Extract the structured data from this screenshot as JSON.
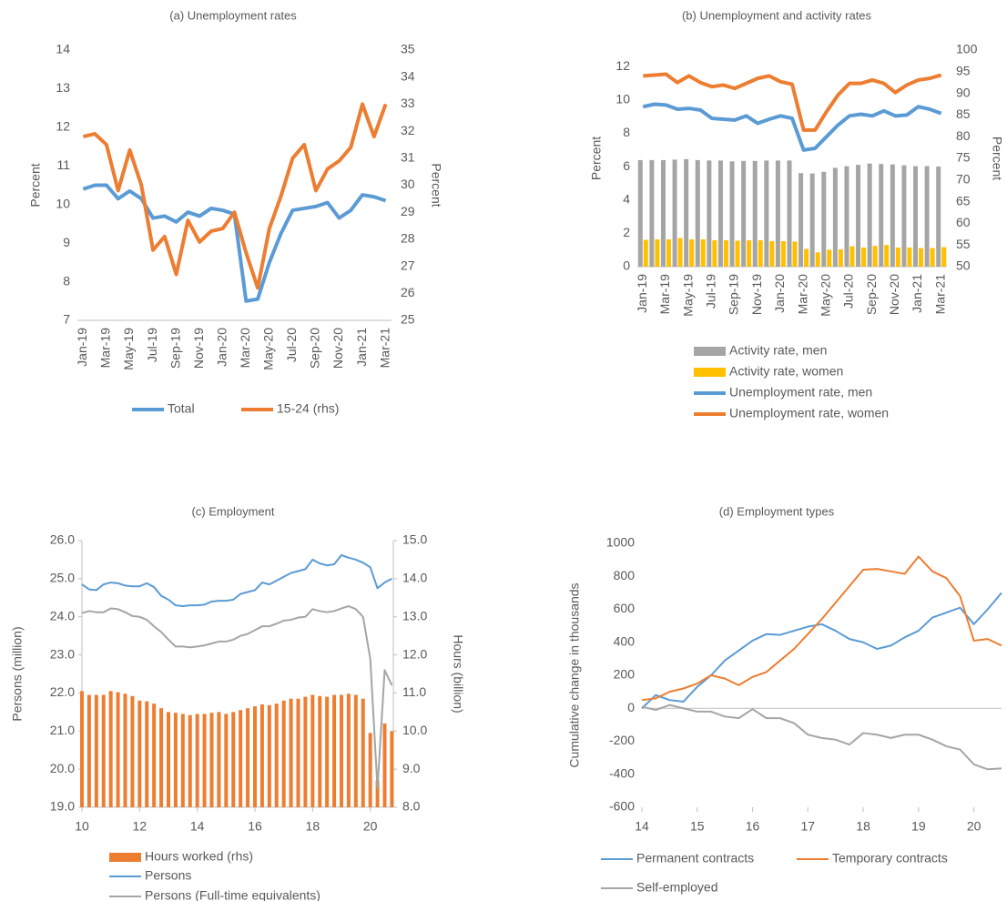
{
  "chart_data": [
    {
      "type": "combo",
      "title": "(a) Unemployment rates",
      "ylabel": "Percent",
      "y2label": "Percent",
      "categories": [
        "Jan-19",
        null,
        "Mar-19",
        null,
        "May-19",
        null,
        "Jul-19",
        null,
        "Sep-19",
        null,
        "Nov-19",
        null,
        "Jan-20",
        null,
        "Mar-20",
        null,
        "May-20",
        null,
        "Jul-20",
        null,
        "Sep-20",
        null,
        "Nov-20",
        null,
        "Jan-21",
        null,
        "Mar-21"
      ],
      "ylim": [
        7,
        14
      ],
      "yticks": [
        7,
        8,
        9,
        10,
        11,
        12,
        13,
        14
      ],
      "y2lim": [
        25,
        35
      ],
      "y2ticks": [
        25,
        26,
        27,
        28,
        29,
        30,
        31,
        32,
        33,
        34,
        35
      ],
      "series": [
        {
          "name": "Total",
          "type": "line",
          "color": "#5b9bd5",
          "values": [
            10.4,
            10.5,
            10.5,
            10.15,
            10.35,
            10.15,
            9.65,
            9.7,
            9.55,
            9.8,
            9.7,
            9.9,
            9.85,
            9.75,
            7.5,
            7.55,
            8.5,
            9.25,
            9.85,
            9.9,
            9.95,
            10.05,
            9.65,
            9.85,
            10.25,
            10.2,
            10.1
          ]
        },
        {
          "name": "15-24 (rhs)",
          "type": "line",
          "axis": "y2",
          "color": "#ed7d31",
          "values": [
            31.8,
            31.9,
            31.5,
            29.8,
            31.3,
            30.0,
            27.6,
            28.1,
            26.7,
            28.7,
            27.9,
            28.3,
            28.4,
            29.0,
            27.5,
            26.2,
            28.4,
            29.6,
            31.0,
            31.5,
            29.8,
            30.6,
            30.9,
            31.4,
            33.0,
            31.8,
            33.0
          ]
        }
      ]
    },
    {
      "type": "combo",
      "title": "(b) Unemployment and activity rates",
      "ylabel": "Percent",
      "y2label": "Percent",
      "categories": [
        "Jan-19",
        null,
        "Mar-19",
        null,
        "May-19",
        null,
        "Jul-19",
        null,
        "Sep-19",
        null,
        "Nov-19",
        null,
        "Jan-20",
        null,
        "Mar-20",
        null,
        "May-20",
        null,
        "Jul-20",
        null,
        "Sep-20",
        null,
        "Nov-20",
        null,
        "Jan-21",
        null,
        "Mar-21"
      ],
      "ylim": [
        0,
        13
      ],
      "yticks": [
        0,
        2,
        4,
        6,
        8,
        10,
        12
      ],
      "y2lim": [
        50,
        100
      ],
      "y2ticks": [
        50,
        55,
        60,
        65,
        70,
        75,
        80,
        85,
        90,
        95,
        100
      ],
      "series": [
        {
          "name": "Activity rate, men",
          "type": "bar",
          "axis": "y2",
          "color": "#a5a5a5",
          "values": [
            74.6,
            74.6,
            74.6,
            74.7,
            74.8,
            74.6,
            74.5,
            74.5,
            74.3,
            74.4,
            74.4,
            74.5,
            74.5,
            74.5,
            71.6,
            71.5,
            71.9,
            72.8,
            73.2,
            73.5,
            73.8,
            73.7,
            73.6,
            73.4,
            73.2,
            73.2,
            73.1
          ]
        },
        {
          "name": "Activity rate, women",
          "type": "bar",
          "axis": "y2",
          "color": "#ffc000",
          "values": [
            56.2,
            56.3,
            56.3,
            56.6,
            56.3,
            56.3,
            56.1,
            56.1,
            56.0,
            56.1,
            56.1,
            55.9,
            55.9,
            55.8,
            54.1,
            53.3,
            53.9,
            54.0,
            54.7,
            54.4,
            54.8,
            55.0,
            54.4,
            54.4,
            54.3,
            54.3,
            54.5
          ]
        },
        {
          "name": "Unemployment rate, men",
          "type": "line",
          "color": "#5b9bd5",
          "values": [
            9.6,
            9.75,
            9.7,
            9.45,
            9.5,
            9.4,
            8.9,
            8.85,
            8.8,
            9.05,
            8.6,
            8.85,
            9.05,
            8.9,
            7.0,
            7.1,
            7.8,
            8.5,
            9.05,
            9.15,
            9.05,
            9.35,
            9.05,
            9.1,
            9.6,
            9.45,
            9.2
          ]
        },
        {
          "name": "Unemployment rate, women",
          "type": "line",
          "color": "#ed7d31",
          "values": [
            11.45,
            11.5,
            11.55,
            11.05,
            11.45,
            11.05,
            10.8,
            10.9,
            10.7,
            11.0,
            11.3,
            11.45,
            11.1,
            10.95,
            8.2,
            8.2,
            9.3,
            10.3,
            11.0,
            11.0,
            11.2,
            11.0,
            10.45,
            10.9,
            11.2,
            11.3,
            11.5
          ]
        }
      ]
    },
    {
      "type": "combo",
      "title": "(c) Employment",
      "ylabel": "Persons (million)",
      "y2label": "Hours (billion)",
      "x": [
        10,
        10.25,
        10.5,
        10.75,
        11,
        11.25,
        11.5,
        11.75,
        12,
        12.25,
        12.5,
        12.75,
        13,
        13.25,
        13.5,
        13.75,
        14,
        14.25,
        14.5,
        14.75,
        15,
        15.25,
        15.5,
        15.75,
        16,
        16.25,
        16.5,
        16.75,
        17,
        17.25,
        17.5,
        17.75,
        18,
        18.25,
        18.5,
        18.75,
        19,
        19.25,
        19.5,
        19.75,
        20,
        20.25,
        20.5,
        20.75
      ],
      "xlim": [
        10,
        20.8
      ],
      "xticks": [
        10,
        12,
        14,
        16,
        18,
        20
      ],
      "ylim": [
        19,
        26
      ],
      "yticks": [
        {
          "value": 19,
          "label": "19.0"
        },
        {
          "value": 20,
          "label": "20.0"
        },
        {
          "value": 21,
          "label": "21.0"
        },
        {
          "value": 22,
          "label": "22.0"
        },
        {
          "value": 23,
          "label": "23.0"
        },
        {
          "value": 24,
          "label": "24.0"
        },
        {
          "value": 25,
          "label": "25.0"
        },
        {
          "value": 26,
          "label": "26.0"
        }
      ],
      "y2lim": [
        8,
        15
      ],
      "y2ticks": [
        {
          "value": 8,
          "label": "8.0"
        },
        {
          "value": 9,
          "label": "9.0"
        },
        {
          "value": 10,
          "label": "10.0"
        },
        {
          "value": 11,
          "label": "11.0"
        },
        {
          "value": 12,
          "label": "12.0"
        },
        {
          "value": 13,
          "label": "13.0"
        },
        {
          "value": 14,
          "label": "14.0"
        },
        {
          "value": 15,
          "label": "15.0"
        }
      ],
      "series": [
        {
          "name": "Hours worked (rhs)",
          "type": "bar",
          "axis": "y2",
          "color": "#ed7d31",
          "values": [
            11.05,
            10.95,
            10.95,
            10.95,
            11.05,
            11.02,
            10.98,
            10.92,
            10.8,
            10.78,
            10.72,
            10.6,
            10.5,
            10.48,
            10.45,
            10.42,
            10.45,
            10.45,
            10.48,
            10.5,
            10.45,
            10.5,
            10.55,
            10.6,
            10.65,
            10.7,
            10.68,
            10.72,
            10.8,
            10.85,
            10.85,
            10.9,
            10.95,
            10.92,
            10.9,
            10.95,
            10.95,
            10.98,
            10.95,
            10.85,
            9.95,
            8.7,
            10.2,
            10.0
          ]
        },
        {
          "name": "Persons",
          "type": "line",
          "color": "#5b9bd5",
          "values": [
            24.85,
            24.72,
            24.7,
            24.85,
            24.9,
            24.88,
            24.82,
            24.8,
            24.8,
            24.88,
            24.78,
            24.55,
            24.45,
            24.3,
            24.28,
            24.3,
            24.3,
            24.32,
            24.4,
            24.42,
            24.42,
            24.45,
            24.6,
            24.65,
            24.7,
            24.9,
            24.85,
            24.95,
            25.05,
            25.15,
            25.2,
            25.25,
            25.5,
            25.4,
            25.35,
            25.38,
            25.62,
            25.55,
            25.5,
            25.42,
            25.3,
            24.75,
            24.9,
            25
          ]
        },
        {
          "name": "Persons (Full-time equivalents)",
          "type": "line",
          "color": "#a5a5a5",
          "values": [
            24.1,
            24.15,
            24.12,
            24.12,
            24.22,
            24.2,
            24.12,
            24.02,
            24.0,
            23.92,
            23.75,
            23.6,
            23.4,
            23.22,
            23.22,
            23.2,
            23.22,
            23.25,
            23.3,
            23.35,
            23.35,
            23.4,
            23.5,
            23.55,
            23.65,
            23.75,
            23.75,
            23.82,
            23.9,
            23.92,
            23.98,
            24.0,
            24.2,
            24.15,
            24.12,
            24.15,
            24.22,
            24.28,
            24.2,
            24.0,
            22.9,
            19.5,
            22.6,
            22.2
          ]
        }
      ]
    },
    {
      "type": "combo",
      "title": "(d) Employment types",
      "ylabel": "Cumulative change in thousands",
      "x": [
        14,
        14.25,
        14.5,
        14.75,
        15,
        15.25,
        15.5,
        15.75,
        16,
        16.25,
        16.5,
        16.75,
        17,
        17.25,
        17.5,
        17.75,
        18,
        18.25,
        18.5,
        18.75,
        19,
        19.25,
        19.5,
        19.75,
        20,
        20.25,
        20.5
      ],
      "xlim": [
        14,
        20.5
      ],
      "xticks": [
        14,
        15,
        16,
        17,
        18,
        19,
        20
      ],
      "ylim": [
        -600,
        1000
      ],
      "yticks": [
        -600,
        -400,
        -200,
        0,
        200,
        400,
        600,
        800,
        1000
      ],
      "series": [
        {
          "name": "Permanent contracts",
          "type": "line",
          "color": "#5b9bd5",
          "values": [
            0,
            80,
            50,
            40,
            130,
            200,
            290,
            350,
            410,
            450,
            445,
            470,
            495,
            510,
            470,
            420,
            400,
            360,
            380,
            430,
            470,
            550,
            580,
            610,
            510,
            600,
            700
          ]
        },
        {
          "name": "Temporary contracts",
          "type": "line",
          "color": "#ed7d31",
          "values": [
            50,
            60,
            100,
            120,
            150,
            200,
            180,
            140,
            190,
            220,
            290,
            360,
            450,
            540,
            640,
            740,
            840,
            845,
            830,
            815,
            920,
            830,
            790,
            680,
            410,
            420,
            380
          ]
        },
        {
          "name": "Self-employed",
          "type": "line",
          "color": "#a5a5a5",
          "values": [
            10,
            -10,
            20,
            0,
            -20,
            -20,
            -50,
            -60,
            -5,
            -60,
            -60,
            -90,
            -160,
            -180,
            -190,
            -220,
            -150,
            -160,
            -180,
            -160,
            -160,
            -190,
            -230,
            -250,
            -340,
            -370,
            -365
          ]
        }
      ]
    }
  ]
}
